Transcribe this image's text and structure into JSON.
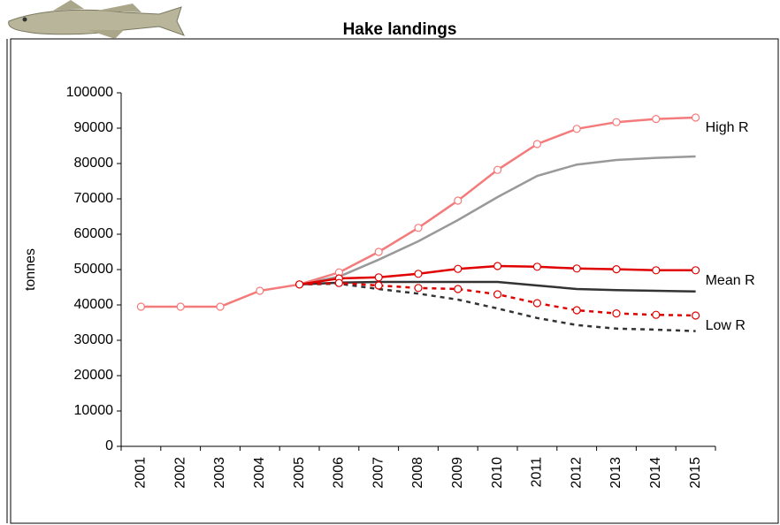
{
  "chart_data": {
    "type": "line",
    "title": "Hake landings",
    "y_label": "tonnes",
    "categories": [
      "2001",
      "2002",
      "2003",
      "2004",
      "2005",
      "2006",
      "2007",
      "2008",
      "2009",
      "2010",
      "2011",
      "2012",
      "2013",
      "2014",
      "2015"
    ],
    "ylim": [
      0,
      100000
    ],
    "yticks": [
      0,
      10000,
      20000,
      30000,
      40000,
      50000,
      60000,
      70000,
      80000,
      90000,
      100000
    ],
    "series": [
      {
        "color": "#999999",
        "dash": false,
        "marker": false,
        "values": [
          null,
          null,
          null,
          null,
          45800,
          48000,
          52800,
          58000,
          64000,
          70500,
          76500,
          79700,
          81000,
          81600,
          82000
        ]
      },
      {
        "color": "#333333",
        "dash": false,
        "marker": false,
        "values": [
          null,
          null,
          null,
          null,
          45800,
          46300,
          46500,
          46500,
          46500,
          46500,
          45500,
          44500,
          44200,
          44000,
          43800
        ]
      },
      {
        "color": "#333333",
        "dash": true,
        "marker": false,
        "values": [
          null,
          null,
          null,
          null,
          45800,
          46000,
          44500,
          43200,
          41500,
          39000,
          36300,
          34300,
          33300,
          33000,
          32600
        ]
      },
      {
        "name": "High R",
        "color": "#f47b7b",
        "dash": false,
        "marker": true,
        "values": [
          39500,
          39500,
          39500,
          44000,
          45800,
          49200,
          55000,
          61800,
          69500,
          78200,
          85500,
          89800,
          91700,
          92600,
          93000
        ]
      },
      {
        "name": "Mean R",
        "color": "#e00000",
        "dash": false,
        "marker": true,
        "values": [
          null,
          null,
          null,
          null,
          45800,
          47500,
          47800,
          48800,
          50200,
          51000,
          50800,
          50300,
          50100,
          49800,
          49800
        ]
      },
      {
        "name": "Low R",
        "color": "#e00000",
        "dash": true,
        "marker": true,
        "values": [
          null,
          null,
          null,
          null,
          45800,
          46200,
          45500,
          44800,
          44500,
          43000,
          40500,
          38500,
          37600,
          37200,
          37000
        ]
      }
    ]
  }
}
